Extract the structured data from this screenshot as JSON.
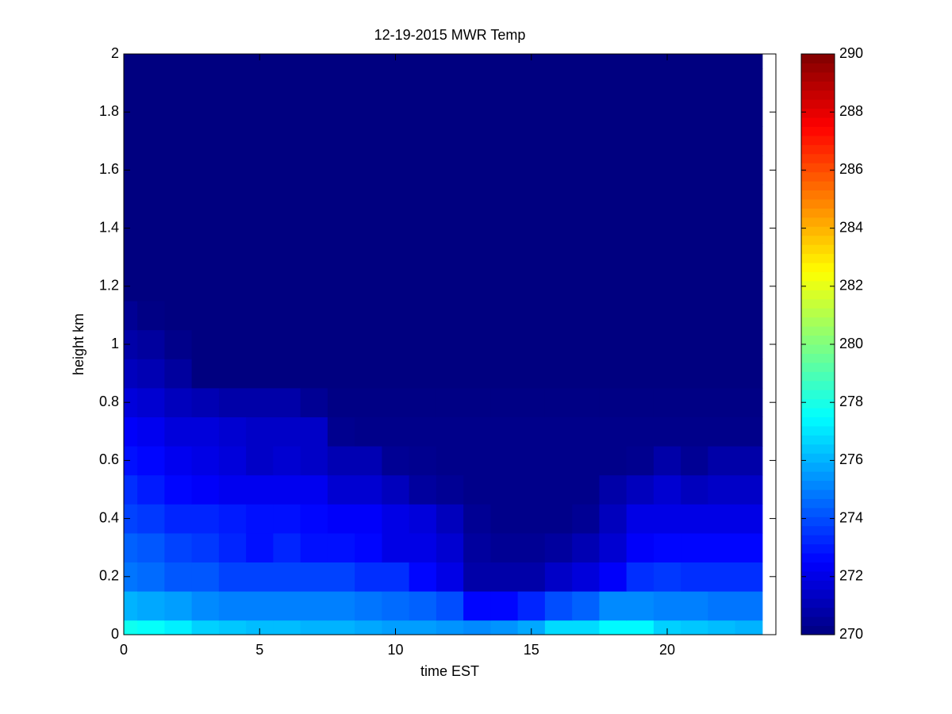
{
  "chart_data": {
    "type": "heatmap",
    "title": "12-19-2015 MWR Temp",
    "x_label": "time EST",
    "y_label": "height km",
    "x": [
      0,
      1,
      2,
      3,
      4,
      5,
      6,
      7,
      8,
      9,
      10,
      11,
      12,
      13,
      14,
      15,
      16,
      17,
      18,
      19,
      20,
      21,
      22,
      23
    ],
    "y": [
      0,
      0.1,
      0.2,
      0.3,
      0.4,
      0.5,
      0.6,
      0.7,
      0.8,
      0.9,
      1,
      1.1,
      1.2,
      1.3,
      1.4,
      1.5,
      1.6,
      1.7,
      1.8,
      1.9,
      2
    ],
    "z": [
      [
        277.8,
        277.6,
        277.2,
        276.6,
        276.4,
        276.2,
        276.2,
        276.0,
        276.0,
        275.8,
        275.6,
        275.6,
        275.4,
        275.2,
        275.4,
        275.8,
        276.8,
        276.8,
        277.4,
        277.4,
        276.6,
        276.4,
        276.2,
        276.0
      ],
      [
        276.0,
        275.8,
        275.6,
        275.2,
        275.0,
        275.0,
        275.0,
        275.0,
        275.0,
        274.8,
        274.6,
        274.4,
        274.0,
        272.6,
        272.6,
        273.2,
        274.0,
        274.4,
        275.2,
        275.2,
        275.0,
        275.0,
        274.8,
        274.8
      ],
      [
        274.8,
        274.6,
        274.2,
        274.2,
        273.8,
        273.8,
        273.8,
        273.8,
        273.8,
        273.4,
        273.4,
        272.6,
        272.0,
        270.8,
        270.8,
        270.8,
        271.4,
        271.8,
        272.4,
        273.4,
        273.6,
        273.4,
        273.4,
        273.4
      ],
      [
        274.4,
        274.2,
        273.8,
        273.6,
        273.2,
        272.8,
        273.2,
        272.8,
        272.8,
        272.6,
        272.0,
        272.0,
        271.6,
        270.6,
        270.4,
        270.4,
        270.6,
        271.0,
        271.6,
        272.4,
        272.6,
        272.6,
        272.6,
        272.6
      ],
      [
        273.8,
        273.6,
        273.2,
        273.2,
        273.0,
        272.8,
        272.8,
        272.6,
        272.4,
        272.4,
        272.0,
        271.8,
        271.2,
        270.4,
        270.2,
        270.2,
        270.2,
        270.4,
        271.2,
        272.0,
        272.0,
        272.0,
        272.0,
        272.0
      ],
      [
        273.4,
        273.0,
        272.6,
        272.4,
        272.2,
        272.2,
        272.2,
        272.2,
        271.6,
        271.6,
        271.2,
        270.6,
        270.4,
        270.2,
        270.2,
        270.2,
        270.2,
        270.2,
        270.8,
        271.2,
        271.6,
        271.2,
        271.4,
        271.4
      ],
      [
        272.8,
        272.6,
        272.2,
        272.0,
        271.8,
        271.4,
        271.6,
        271.4,
        271.0,
        271.0,
        270.4,
        270.3,
        270.2,
        270.2,
        270.2,
        270.2,
        270.2,
        270.2,
        270.2,
        270.3,
        270.8,
        270.4,
        270.8,
        270.8
      ],
      [
        272.4,
        272.2,
        271.8,
        271.8,
        271.6,
        271.4,
        271.4,
        271.4,
        270.3,
        270.2,
        270.2,
        270.2,
        270.2,
        270.2,
        270.2,
        270.2,
        270.2,
        270.2,
        270.2,
        270.2,
        270.2,
        270.2,
        270.2,
        270.2
      ],
      [
        271.8,
        271.6,
        271.2,
        271.0,
        270.8,
        270.8,
        270.8,
        270.4,
        270.1,
        270.1,
        270.1,
        270.1,
        270.1,
        270.1,
        270.1,
        270.1,
        270.1,
        270.1,
        270.1,
        270.1,
        270.1,
        270.1,
        270.1,
        270.1
      ],
      [
        271.2,
        271.0,
        270.6,
        270.0,
        270.0,
        270.0,
        270.0,
        270.0,
        270.0,
        270.0,
        270.0,
        270.0,
        270.0,
        270.0,
        270.0,
        270.0,
        270.0,
        270.0,
        270.0,
        270.0,
        270.0,
        270.0,
        270.0,
        270.0
      ],
      [
        270.8,
        270.6,
        270.2,
        270.0,
        270.0,
        270.0,
        270.0,
        270.0,
        270.0,
        270.0,
        270.0,
        270.0,
        270.0,
        270.0,
        270.0,
        270.0,
        270.0,
        270.0,
        270.0,
        270.0,
        270.0,
        270.0,
        270.0,
        270.0
      ],
      [
        270.4,
        270.1,
        269.8,
        269.8,
        269.8,
        269.8,
        269.8,
        269.8,
        269.8,
        269.8,
        269.8,
        269.8,
        269.8,
        269.8,
        269.8,
        269.8,
        269.8,
        269.8,
        269.8,
        269.8,
        269.8,
        269.8,
        269.8,
        269.8
      ],
      [
        269.5,
        269.5,
        269.5,
        269.5,
        269.5,
        269.5,
        269.5,
        269.5,
        269.5,
        269.5,
        269.5,
        269.5,
        269.5,
        269.5,
        269.5,
        269.5,
        269.5,
        269.5,
        269.5,
        269.5,
        269.5,
        269.5,
        269.5,
        269.5
      ],
      [
        269.5,
        269.5,
        269.5,
        269.5,
        269.5,
        269.5,
        269.5,
        269.5,
        269.5,
        269.5,
        269.5,
        269.5,
        269.5,
        269.5,
        269.5,
        269.5,
        269.5,
        269.5,
        269.5,
        269.5,
        269.5,
        269.5,
        269.5,
        269.5
      ],
      [
        269.5,
        269.5,
        269.5,
        269.5,
        269.5,
        269.5,
        269.5,
        269.5,
        269.5,
        269.5,
        269.5,
        269.5,
        269.5,
        269.5,
        269.5,
        269.5,
        269.5,
        269.5,
        269.5,
        269.5,
        269.5,
        269.5,
        269.5,
        269.5
      ],
      [
        269.5,
        269.5,
        269.5,
        269.5,
        269.5,
        269.5,
        269.5,
        269.5,
        269.5,
        269.5,
        269.5,
        269.5,
        269.5,
        269.5,
        269.5,
        269.5,
        269.5,
        269.5,
        269.5,
        269.5,
        269.5,
        269.5,
        269.5,
        269.5
      ],
      [
        269.5,
        269.5,
        269.5,
        269.5,
        269.5,
        269.5,
        269.5,
        269.5,
        269.5,
        269.5,
        269.5,
        269.5,
        269.5,
        269.5,
        269.5,
        269.5,
        269.5,
        269.5,
        269.5,
        269.5,
        269.5,
        269.5,
        269.5,
        269.5
      ],
      [
        269.5,
        269.5,
        269.5,
        269.5,
        269.5,
        269.5,
        269.5,
        269.5,
        269.5,
        269.5,
        269.5,
        269.5,
        269.5,
        269.5,
        269.5,
        269.5,
        269.5,
        269.5,
        269.5,
        269.5,
        269.5,
        269.5,
        269.5,
        269.5
      ],
      [
        269.5,
        269.5,
        269.5,
        269.5,
        269.5,
        269.5,
        269.5,
        269.5,
        269.5,
        269.5,
        269.5,
        269.5,
        269.5,
        269.5,
        269.5,
        269.5,
        269.5,
        269.5,
        269.5,
        269.5,
        269.5,
        269.5,
        269.5,
        269.5
      ],
      [
        269.5,
        269.5,
        269.5,
        269.5,
        269.5,
        269.5,
        269.5,
        269.5,
        269.5,
        269.5,
        269.5,
        269.5,
        269.5,
        269.5,
        269.5,
        269.5,
        269.5,
        269.5,
        269.5,
        269.5,
        269.5,
        269.5,
        269.5,
        269.5
      ],
      [
        269.5,
        269.5,
        269.5,
        269.5,
        269.5,
        269.5,
        269.5,
        269.5,
        269.5,
        269.5,
        269.5,
        269.5,
        269.5,
        269.5,
        269.5,
        269.5,
        269.5,
        269.5,
        269.5,
        269.5,
        269.5,
        269.5,
        269.5,
        269.5
      ]
    ],
    "xlim": [
      0,
      24
    ],
    "xticks": [
      0,
      5,
      10,
      15,
      20
    ],
    "ylim": [
      0,
      2
    ],
    "yticks": [
      0,
      0.2,
      0.4,
      0.6,
      0.8,
      1,
      1.2,
      1.4,
      1.6,
      1.8,
      2
    ],
    "colormap": "jet",
    "clim": [
      270,
      290
    ],
    "cticks": [
      270,
      272,
      274,
      276,
      278,
      280,
      282,
      284,
      286,
      288,
      290
    ]
  }
}
